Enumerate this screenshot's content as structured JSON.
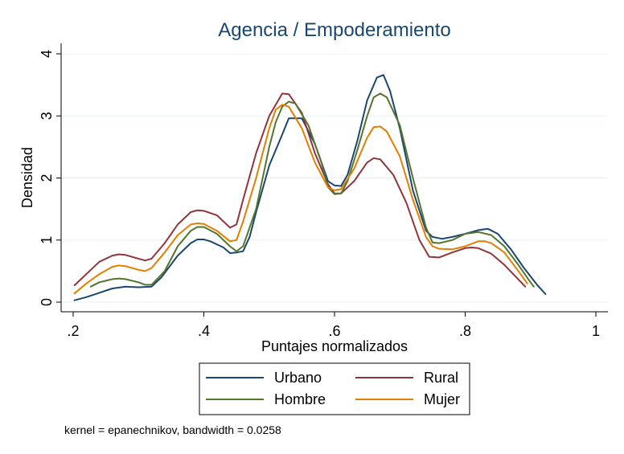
{
  "chart_data": {
    "type": "line",
    "title": "Agencia / Empoderamiento",
    "xlabel": "Puntajes normalizados",
    "ylabel": "Densidad",
    "xlim": [
      0.2,
      1.0
    ],
    "ylim": [
      0,
      4
    ],
    "xticks": [
      {
        "value": 0.2,
        "label": ".2"
      },
      {
        "value": 0.4,
        "label": ".4"
      },
      {
        "value": 0.6,
        "label": ".6"
      },
      {
        "value": 0.8,
        "label": ".8"
      },
      {
        "value": 1.0,
        "label": "1"
      }
    ],
    "yticks": [
      {
        "value": 0,
        "label": "0"
      },
      {
        "value": 1,
        "label": "1"
      },
      {
        "value": 2,
        "label": "2"
      },
      {
        "value": 3,
        "label": "3"
      },
      {
        "value": 4,
        "label": "4"
      }
    ],
    "grid": "horizontal",
    "legend_position": "bottom",
    "note": "kernel = epanechnikov, bandwidth = 0.0258",
    "series": [
      {
        "name": "Urbano",
        "color": "#1a476f",
        "points": [
          [
            0.202,
            0.03
          ],
          [
            0.22,
            0.08
          ],
          [
            0.24,
            0.15
          ],
          [
            0.26,
            0.22
          ],
          [
            0.28,
            0.25
          ],
          [
            0.3,
            0.24
          ],
          [
            0.32,
            0.25
          ],
          [
            0.335,
            0.4
          ],
          [
            0.36,
            0.75
          ],
          [
            0.38,
            0.95
          ],
          [
            0.39,
            1.01
          ],
          [
            0.4,
            1.01
          ],
          [
            0.41,
            0.98
          ],
          [
            0.43,
            0.88
          ],
          [
            0.44,
            0.79
          ],
          [
            0.45,
            0.8
          ],
          [
            0.46,
            0.82
          ],
          [
            0.47,
            1.05
          ],
          [
            0.48,
            1.45
          ],
          [
            0.5,
            2.2
          ],
          [
            0.52,
            2.7
          ],
          [
            0.53,
            2.96
          ],
          [
            0.55,
            2.96
          ],
          [
            0.57,
            2.55
          ],
          [
            0.59,
            1.95
          ],
          [
            0.6,
            1.88
          ],
          [
            0.61,
            1.87
          ],
          [
            0.62,
            2.05
          ],
          [
            0.635,
            2.6
          ],
          [
            0.65,
            3.25
          ],
          [
            0.665,
            3.62
          ],
          [
            0.675,
            3.66
          ],
          [
            0.685,
            3.4
          ],
          [
            0.7,
            2.8
          ],
          [
            0.72,
            1.8
          ],
          [
            0.74,
            1.15
          ],
          [
            0.75,
            1.05
          ],
          [
            0.765,
            1.02
          ],
          [
            0.78,
            1.05
          ],
          [
            0.8,
            1.1
          ],
          [
            0.82,
            1.16
          ],
          [
            0.835,
            1.18
          ],
          [
            0.85,
            1.1
          ],
          [
            0.87,
            0.85
          ],
          [
            0.89,
            0.55
          ],
          [
            0.91,
            0.28
          ],
          [
            0.923,
            0.13
          ]
        ]
      },
      {
        "name": "Rural",
        "color": "#90353b",
        "points": [
          [
            0.202,
            0.27
          ],
          [
            0.22,
            0.45
          ],
          [
            0.24,
            0.65
          ],
          [
            0.26,
            0.75
          ],
          [
            0.27,
            0.77
          ],
          [
            0.28,
            0.76
          ],
          [
            0.3,
            0.7
          ],
          [
            0.31,
            0.67
          ],
          [
            0.32,
            0.7
          ],
          [
            0.34,
            0.95
          ],
          [
            0.36,
            1.25
          ],
          [
            0.38,
            1.45
          ],
          [
            0.39,
            1.48
          ],
          [
            0.4,
            1.47
          ],
          [
            0.42,
            1.4
          ],
          [
            0.44,
            1.2
          ],
          [
            0.45,
            1.25
          ],
          [
            0.46,
            1.65
          ],
          [
            0.48,
            2.4
          ],
          [
            0.5,
            3.0
          ],
          [
            0.52,
            3.36
          ],
          [
            0.53,
            3.35
          ],
          [
            0.55,
            3.05
          ],
          [
            0.57,
            2.4
          ],
          [
            0.59,
            1.9
          ],
          [
            0.6,
            1.75
          ],
          [
            0.61,
            1.75
          ],
          [
            0.63,
            1.95
          ],
          [
            0.65,
            2.25
          ],
          [
            0.66,
            2.32
          ],
          [
            0.67,
            2.3
          ],
          [
            0.69,
            2.05
          ],
          [
            0.71,
            1.6
          ],
          [
            0.73,
            1.0
          ],
          [
            0.745,
            0.73
          ],
          [
            0.76,
            0.72
          ],
          [
            0.78,
            0.8
          ],
          [
            0.8,
            0.87
          ],
          [
            0.81,
            0.88
          ],
          [
            0.82,
            0.87
          ],
          [
            0.84,
            0.78
          ],
          [
            0.86,
            0.6
          ],
          [
            0.88,
            0.38
          ],
          [
            0.892,
            0.25
          ]
        ]
      },
      {
        "name": "Hombre",
        "color": "#55752f",
        "points": [
          [
            0.227,
            0.25
          ],
          [
            0.24,
            0.32
          ],
          [
            0.26,
            0.37
          ],
          [
            0.27,
            0.38
          ],
          [
            0.28,
            0.37
          ],
          [
            0.3,
            0.32
          ],
          [
            0.31,
            0.28
          ],
          [
            0.32,
            0.28
          ],
          [
            0.34,
            0.5
          ],
          [
            0.36,
            0.9
          ],
          [
            0.38,
            1.15
          ],
          [
            0.39,
            1.21
          ],
          [
            0.4,
            1.21
          ],
          [
            0.42,
            1.1
          ],
          [
            0.44,
            0.9
          ],
          [
            0.45,
            0.82
          ],
          [
            0.46,
            0.9
          ],
          [
            0.48,
            1.5
          ],
          [
            0.5,
            2.5
          ],
          [
            0.51,
            2.9
          ],
          [
            0.52,
            3.15
          ],
          [
            0.53,
            3.23
          ],
          [
            0.54,
            3.2
          ],
          [
            0.56,
            2.85
          ],
          [
            0.58,
            2.25
          ],
          [
            0.59,
            1.85
          ],
          [
            0.6,
            1.74
          ],
          [
            0.61,
            1.75
          ],
          [
            0.62,
            1.95
          ],
          [
            0.635,
            2.45
          ],
          [
            0.65,
            3.0
          ],
          [
            0.66,
            3.3
          ],
          [
            0.67,
            3.36
          ],
          [
            0.68,
            3.3
          ],
          [
            0.7,
            2.85
          ],
          [
            0.72,
            2.0
          ],
          [
            0.74,
            1.2
          ],
          [
            0.75,
            0.96
          ],
          [
            0.76,
            0.95
          ],
          [
            0.78,
            1.0
          ],
          [
            0.8,
            1.1
          ],
          [
            0.82,
            1.13
          ],
          [
            0.84,
            1.08
          ],
          [
            0.86,
            0.9
          ],
          [
            0.88,
            0.62
          ],
          [
            0.9,
            0.32
          ],
          [
            0.905,
            0.25
          ]
        ]
      },
      {
        "name": "Mujer",
        "color": "#e37e00",
        "points": [
          [
            0.202,
            0.14
          ],
          [
            0.22,
            0.3
          ],
          [
            0.24,
            0.45
          ],
          [
            0.26,
            0.57
          ],
          [
            0.27,
            0.59
          ],
          [
            0.28,
            0.58
          ],
          [
            0.3,
            0.52
          ],
          [
            0.31,
            0.5
          ],
          [
            0.32,
            0.55
          ],
          [
            0.34,
            0.8
          ],
          [
            0.36,
            1.08
          ],
          [
            0.38,
            1.25
          ],
          [
            0.39,
            1.27
          ],
          [
            0.4,
            1.26
          ],
          [
            0.42,
            1.15
          ],
          [
            0.44,
            0.98
          ],
          [
            0.45,
            1.0
          ],
          [
            0.46,
            1.3
          ],
          [
            0.48,
            2.0
          ],
          [
            0.5,
            2.8
          ],
          [
            0.51,
            3.1
          ],
          [
            0.52,
            3.18
          ],
          [
            0.53,
            3.15
          ],
          [
            0.55,
            2.8
          ],
          [
            0.57,
            2.25
          ],
          [
            0.59,
            1.85
          ],
          [
            0.6,
            1.8
          ],
          [
            0.61,
            1.82
          ],
          [
            0.63,
            2.15
          ],
          [
            0.65,
            2.65
          ],
          [
            0.66,
            2.82
          ],
          [
            0.67,
            2.83
          ],
          [
            0.68,
            2.75
          ],
          [
            0.7,
            2.35
          ],
          [
            0.72,
            1.65
          ],
          [
            0.74,
            1.05
          ],
          [
            0.75,
            0.9
          ],
          [
            0.76,
            0.86
          ],
          [
            0.78,
            0.85
          ],
          [
            0.8,
            0.9
          ],
          [
            0.82,
            0.98
          ],
          [
            0.83,
            0.98
          ],
          [
            0.84,
            0.95
          ],
          [
            0.86,
            0.8
          ],
          [
            0.88,
            0.52
          ],
          [
            0.895,
            0.3
          ]
        ]
      }
    ]
  }
}
